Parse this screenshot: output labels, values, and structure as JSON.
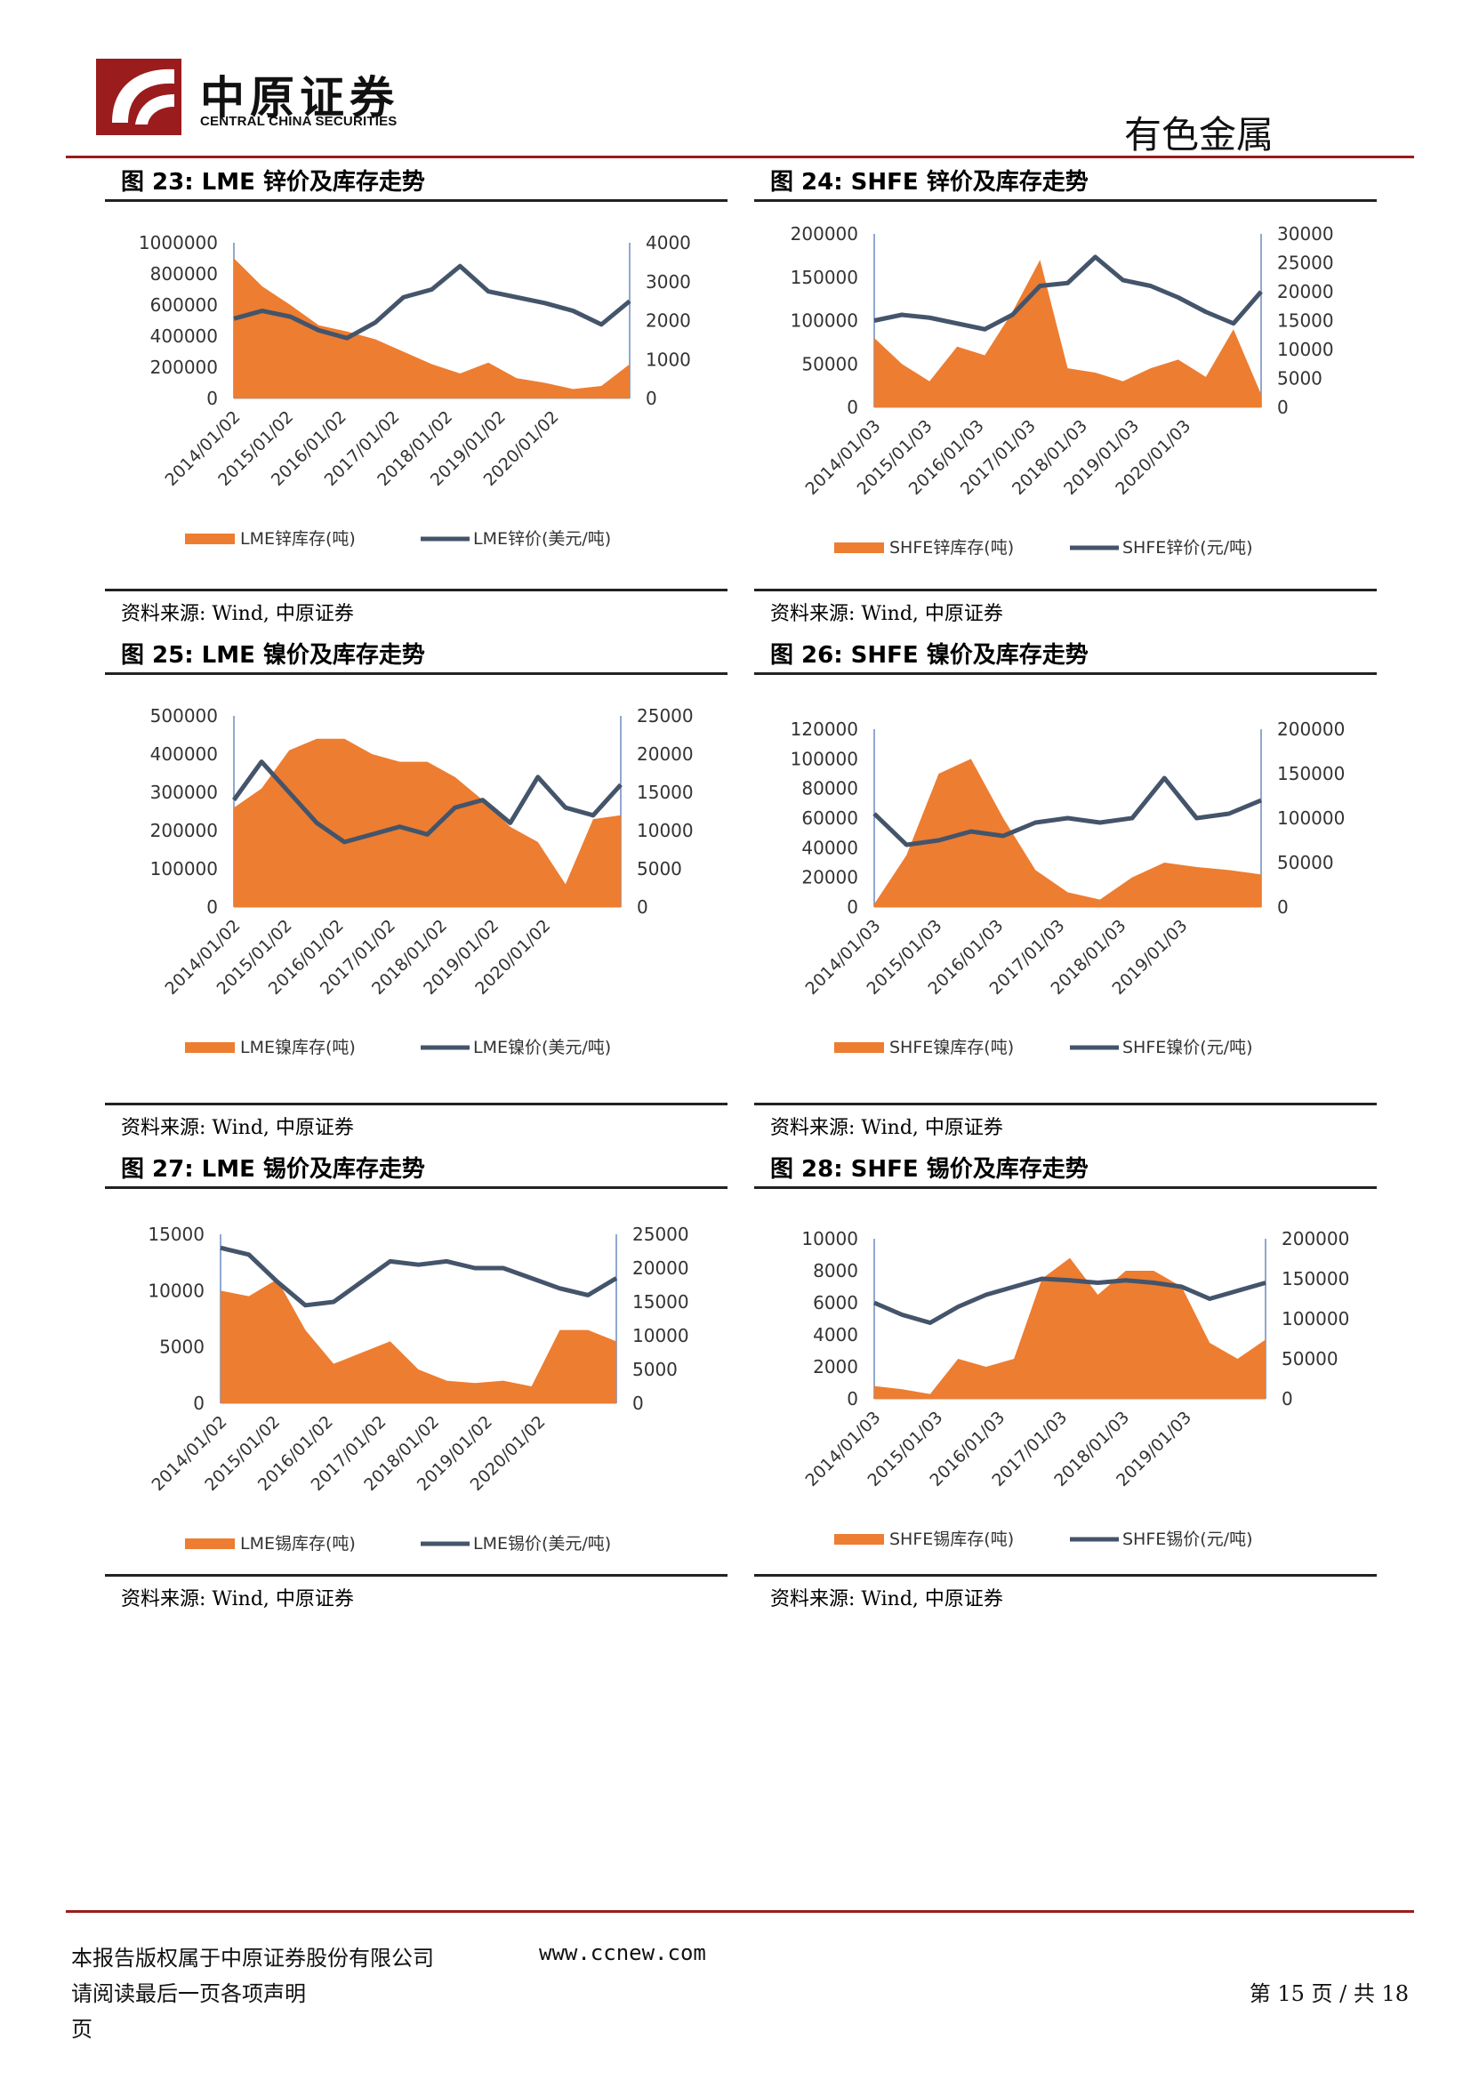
{
  "header": {
    "company_cn": "中原证券",
    "company_en": "CENTRAL CHINA SECURITIES",
    "section": "有色金属",
    "brand_color": "#9b1c1c"
  },
  "footer": {
    "copyright": "本报告版权属于中原证券股份有限公司",
    "website": "www.ccnew.com",
    "disclaimer": "请阅读最后一页各项声明",
    "page_word": "页",
    "page_info": "第 15 页 / 共 18"
  },
  "colors": {
    "stock": "#ed7d31",
    "price": "#44546a"
  },
  "chart_data": [
    {
      "type": "area",
      "title": "图 23:  LME 锌价及库存走势",
      "source": "资料来源: Wind, 中原证券",
      "x": [
        "2014/01/02",
        "2014/07/02",
        "2015/01/02",
        "2015/07/02",
        "2016/01/02",
        "2016/07/02",
        "2017/01/02",
        "2017/07/02",
        "2018/01/02",
        "2018/07/02",
        "2019/01/02",
        "2019/07/02",
        "2020/01/02",
        "2020/07/02",
        "2020/12/01"
      ],
      "xticks": [
        "2014/01/02",
        "2015/01/02",
        "2016/01/02",
        "2017/01/02",
        "2018/01/02",
        "2019/01/02",
        "2020/01/02"
      ],
      "y_left": {
        "ticks": [
          0,
          200000,
          400000,
          600000,
          800000,
          1000000
        ],
        "range": [
          0,
          1000000
        ]
      },
      "y_right": {
        "ticks": [
          0,
          1000,
          2000,
          3000,
          4000
        ],
        "range": [
          0,
          4000
        ]
      },
      "series": [
        {
          "name": "LME锌库存(吨)",
          "type": "area",
          "axis": "left",
          "values": [
            900000,
            720000,
            600000,
            470000,
            430000,
            380000,
            300000,
            220000,
            160000,
            230000,
            130000,
            100000,
            60000,
            80000,
            220000
          ]
        },
        {
          "name": "LME锌价(美元/吨)",
          "type": "line",
          "axis": "right",
          "values": [
            2050,
            2250,
            2100,
            1750,
            1550,
            1950,
            2600,
            2800,
            3400,
            2750,
            2600,
            2450,
            2250,
            1900,
            2500
          ]
        }
      ]
    },
    {
      "type": "area",
      "title": "图 24:  SHFE 锌价及库存走势",
      "source": "资料来源: Wind, 中原证券",
      "x": [
        "2014/01/03",
        "2014/07/03",
        "2015/01/03",
        "2015/07/03",
        "2016/01/03",
        "2016/07/03",
        "2017/01/03",
        "2017/07/03",
        "2018/01/03",
        "2018/07/03",
        "2019/01/03",
        "2019/07/03",
        "2020/01/03",
        "2020/07/03",
        "2020/12/01"
      ],
      "xticks": [
        "2014/01/03",
        "2015/01/03",
        "2016/01/03",
        "2017/01/03",
        "2018/01/03",
        "2019/01/03",
        "2020/01/03"
      ],
      "y_left": {
        "ticks": [
          0,
          50000,
          100000,
          150000,
          200000
        ],
        "range": [
          0,
          200000
        ]
      },
      "y_right": {
        "ticks": [
          0,
          5000,
          10000,
          15000,
          20000,
          25000,
          30000
        ],
        "range": [
          0,
          30000
        ]
      },
      "series": [
        {
          "name": "SHFE锌库存(吨)",
          "type": "area",
          "axis": "left",
          "values": [
            80000,
            50000,
            30000,
            70000,
            60000,
            110000,
            170000,
            45000,
            40000,
            30000,
            45000,
            55000,
            35000,
            90000,
            15000
          ]
        },
        {
          "name": "SHFE锌价(元/吨)",
          "type": "line",
          "axis": "right",
          "values": [
            15000,
            16000,
            15500,
            14500,
            13500,
            16000,
            21000,
            21500,
            26000,
            22000,
            21000,
            19000,
            16500,
            14500,
            20000
          ]
        }
      ]
    },
    {
      "type": "area",
      "title": "图 25:  LME 镍价及库存走势",
      "source": "资料来源: Wind, 中原证券",
      "x": [
        "2014/01/02",
        "2014/07/02",
        "2015/01/02",
        "2015/07/02",
        "2016/01/02",
        "2016/07/02",
        "2017/01/02",
        "2017/07/02",
        "2018/01/02",
        "2018/07/02",
        "2019/01/02",
        "2019/07/02",
        "2020/01/02",
        "2020/07/02",
        "2020/12/01"
      ],
      "xticks": [
        "2014/01/02",
        "2015/01/02",
        "2016/01/02",
        "2017/01/02",
        "2018/01/02",
        "2019/01/02",
        "2020/01/02"
      ],
      "y_left": {
        "ticks": [
          0,
          100000,
          200000,
          300000,
          400000,
          500000
        ],
        "range": [
          0,
          500000
        ]
      },
      "y_right": {
        "ticks": [
          0,
          5000,
          10000,
          15000,
          20000,
          25000
        ],
        "range": [
          0,
          25000
        ]
      },
      "series": [
        {
          "name": "LME镍库存(吨)",
          "type": "area",
          "axis": "left",
          "values": [
            260000,
            310000,
            410000,
            440000,
            440000,
            400000,
            380000,
            380000,
            340000,
            280000,
            210000,
            170000,
            60000,
            230000,
            240000
          ]
        },
        {
          "name": "LME镍价(美元/吨)",
          "type": "line",
          "axis": "right",
          "values": [
            14000,
            19000,
            15000,
            11000,
            8500,
            9500,
            10500,
            9500,
            13000,
            14000,
            11000,
            17000,
            13000,
            12000,
            16000
          ]
        }
      ]
    },
    {
      "type": "area",
      "title": "图 26:  SHFE 镍价及库存走势",
      "source": "资料来源: Wind, 中原证券",
      "x": [
        "2015/03/27",
        "2015/07/03",
        "2016/01/03",
        "2016/07/03",
        "2017/01/03",
        "2017/07/03",
        "2018/01/03",
        "2018/07/03",
        "2019/01/03",
        "2019/07/03",
        "2020/01/03",
        "2020/07/03",
        "2020/12/01"
      ],
      "xticks": [
        "2014/01/03",
        "2015/01/03",
        "2016/01/03",
        "2017/01/03",
        "2018/01/03",
        "2019/01/03"
      ],
      "y_left": {
        "ticks": [
          0,
          20000,
          40000,
          60000,
          80000,
          100000,
          120000
        ],
        "range": [
          0,
          120000
        ]
      },
      "y_right": {
        "ticks": [
          0,
          50000,
          100000,
          150000,
          200000
        ],
        "range": [
          0,
          200000
        ]
      },
      "series": [
        {
          "name": "SHFE镍库存(吨)",
          "type": "area",
          "axis": "left",
          "values": [
            2000,
            35000,
            90000,
            100000,
            60000,
            25000,
            10000,
            5000,
            20000,
            30000,
            27000,
            25000,
            22000
          ]
        },
        {
          "name": "SHFE镍价(元/吨)",
          "type": "line",
          "axis": "right",
          "values": [
            105000,
            70000,
            75000,
            85000,
            80000,
            95000,
            100000,
            95000,
            100000,
            145000,
            100000,
            105000,
            120000
          ]
        }
      ]
    },
    {
      "type": "area",
      "title": "图 27:  LME 锡价及库存走势",
      "source": "资料来源: Wind, 中原证券",
      "x": [
        "2014/01/02",
        "2014/07/02",
        "2015/01/02",
        "2015/07/02",
        "2016/01/02",
        "2016/07/02",
        "2017/01/02",
        "2017/07/02",
        "2018/01/02",
        "2018/07/02",
        "2019/01/02",
        "2019/07/02",
        "2020/01/02",
        "2020/07/02",
        "2020/12/01"
      ],
      "xticks": [
        "2014/01/02",
        "2015/01/02",
        "2016/01/02",
        "2017/01/02",
        "2018/01/02",
        "2019/01/02",
        "2020/01/02"
      ],
      "y_left": {
        "ticks": [
          0,
          5000,
          10000,
          15000
        ],
        "range": [
          0,
          15000
        ]
      },
      "y_right": {
        "ticks": [
          0,
          5000,
          10000,
          15000,
          20000,
          25000
        ],
        "range": [
          0,
          25000
        ]
      },
      "series": [
        {
          "name": "LME锡库存(吨)",
          "type": "area",
          "axis": "left",
          "values": [
            10000,
            9500,
            11000,
            6500,
            3500,
            4500,
            5500,
            3000,
            2000,
            1800,
            2000,
            1500,
            6500,
            6500,
            5500
          ]
        },
        {
          "name": "LME锡价(美元/吨)",
          "type": "line",
          "axis": "right",
          "values": [
            23000,
            22000,
            18000,
            14500,
            15000,
            18000,
            21000,
            20500,
            21000,
            20000,
            20000,
            18500,
            17000,
            16000,
            18500
          ]
        }
      ]
    },
    {
      "type": "area",
      "title": "图 28:  SHFE 锡价及库存走势",
      "source": "资料来源: Wind, 中原证券",
      "x": [
        "2014/01/03",
        "2014/07/03",
        "2015/01/03",
        "2015/07/03",
        "2016/01/03",
        "2016/07/03",
        "2017/01/03",
        "2017/07/03",
        "2018/01/03",
        "2018/07/03",
        "2019/01/03",
        "2019/07/03",
        "2020/01/03",
        "2020/07/03",
        "2020/12/01"
      ],
      "xticks": [
        "2014/01/03",
        "2015/01/03",
        "2016/01/03",
        "2017/01/03",
        "2018/01/03",
        "2019/01/03"
      ],
      "y_left": {
        "ticks": [
          0,
          2000,
          4000,
          6000,
          8000,
          10000
        ],
        "range": [
          0,
          10000
        ]
      },
      "y_right": {
        "ticks": [
          0,
          50000,
          100000,
          150000,
          200000
        ],
        "range": [
          0,
          200000
        ]
      },
      "series": [
        {
          "name": "SHFE锡库存(吨)",
          "type": "area",
          "axis": "left",
          "values": [
            800,
            600,
            300,
            2500,
            2000,
            2500,
            7500,
            8800,
            6500,
            8000,
            8000,
            7000,
            3500,
            2500,
            3700
          ]
        },
        {
          "name": "SHFE锡价(元/吨)",
          "type": "line",
          "axis": "right",
          "values": [
            120000,
            105000,
            95000,
            115000,
            130000,
            140000,
            150000,
            148000,
            145000,
            148000,
            145000,
            140000,
            125000,
            135000,
            145000
          ]
        }
      ]
    }
  ]
}
